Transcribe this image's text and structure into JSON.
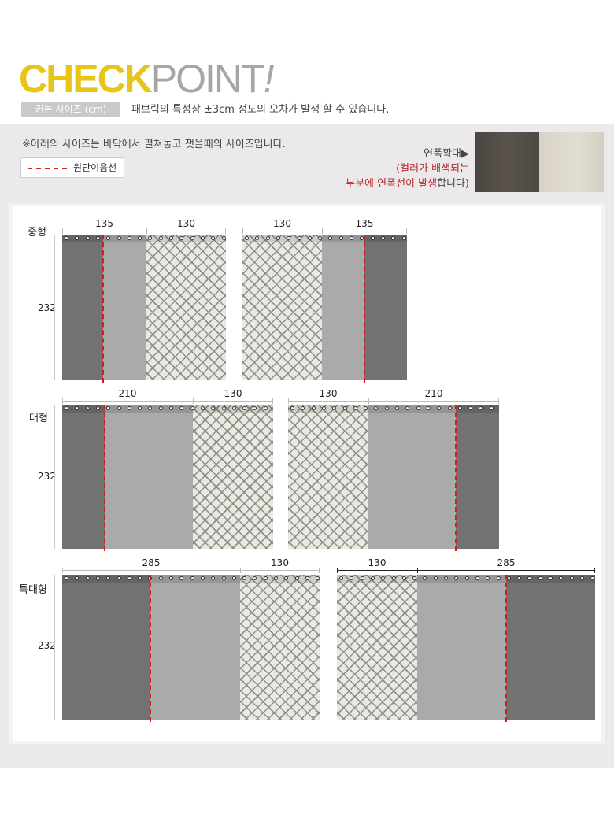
{
  "header": {
    "logo_check": "CHECK",
    "logo_point": "POINT",
    "logo_mark": "!",
    "size_tag": "커튼 사이즈 (cm)",
    "tolerance_note": "패브릭의 특성상 ±3cm 정도의 오차가 발생 할 수 있습니다."
  },
  "info": {
    "measure_note": "※아래의 사이즈는 바닥에서 펼쳐놓고 잿을때의 사이즈입니다.",
    "legend_label": "원단이음선",
    "zoom_label": "연폭확대▶",
    "zoom_desc_1": "(컬러가 배색되는",
    "zoom_desc_2": "부분에 연폭선이 발생",
    "zoom_desc_3": "합니다)"
  },
  "colors": {
    "accent": "#e8c417",
    "seam": "#d21c1c",
    "dark_panel": "#727272",
    "light_panel": "#aaaaaa"
  },
  "rows": [
    {
      "label": "중형",
      "height": "232",
      "left": [
        "135",
        "130"
      ],
      "right": [
        "130",
        "135"
      ]
    },
    {
      "label": "대형",
      "height": "232",
      "left": [
        "210",
        "130"
      ],
      "right": [
        "130",
        "210"
      ]
    },
    {
      "label": "특대형",
      "height": "232",
      "left": [
        "285",
        "130"
      ],
      "right": [
        "130",
        "285"
      ]
    }
  ]
}
